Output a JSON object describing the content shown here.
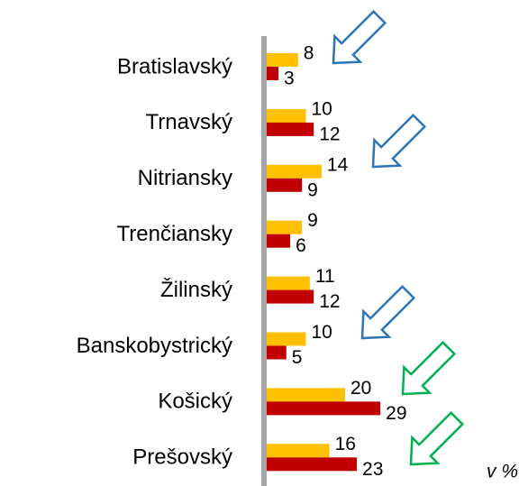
{
  "chart_data": {
    "type": "bar",
    "orientation": "horizontal",
    "categories": [
      "Bratislavský",
      "Trnavský",
      "Nitriansky",
      "Trenčiansky",
      "Žilinský",
      "Banskobystrický",
      "Košický",
      "Prešovský"
    ],
    "series": [
      {
        "color": "#ffc000",
        "values": [
          8,
          10,
          14,
          9,
          11,
          10,
          20,
          16
        ]
      },
      {
        "color": "#c00000",
        "values": [
          3,
          12,
          9,
          6,
          12,
          5,
          29,
          23
        ]
      }
    ],
    "unit_label": "v %"
  }
}
